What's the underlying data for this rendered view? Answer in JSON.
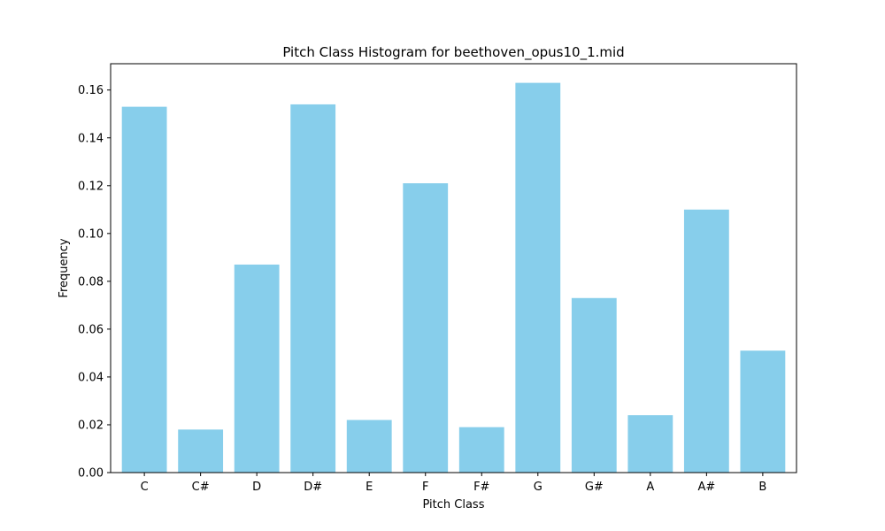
{
  "chart_data": {
    "type": "bar",
    "title": "Pitch Class Histogram for beethoven_opus10_1.mid",
    "xlabel": "Pitch Class",
    "ylabel": "Frequency",
    "categories": [
      "C",
      "C#",
      "D",
      "D#",
      "E",
      "F",
      "F#",
      "G",
      "G#",
      "A",
      "A#",
      "B"
    ],
    "values": [
      0.153,
      0.018,
      0.087,
      0.154,
      0.022,
      0.121,
      0.019,
      0.163,
      0.073,
      0.024,
      0.11,
      0.051
    ],
    "ylim": [
      0,
      0.171
    ],
    "yticks": [
      "0.00",
      "0.02",
      "0.04",
      "0.06",
      "0.08",
      "0.10",
      "0.12",
      "0.14",
      "0.16"
    ],
    "bar_color": "#87ceeb",
    "grid": false,
    "legend": "none"
  }
}
